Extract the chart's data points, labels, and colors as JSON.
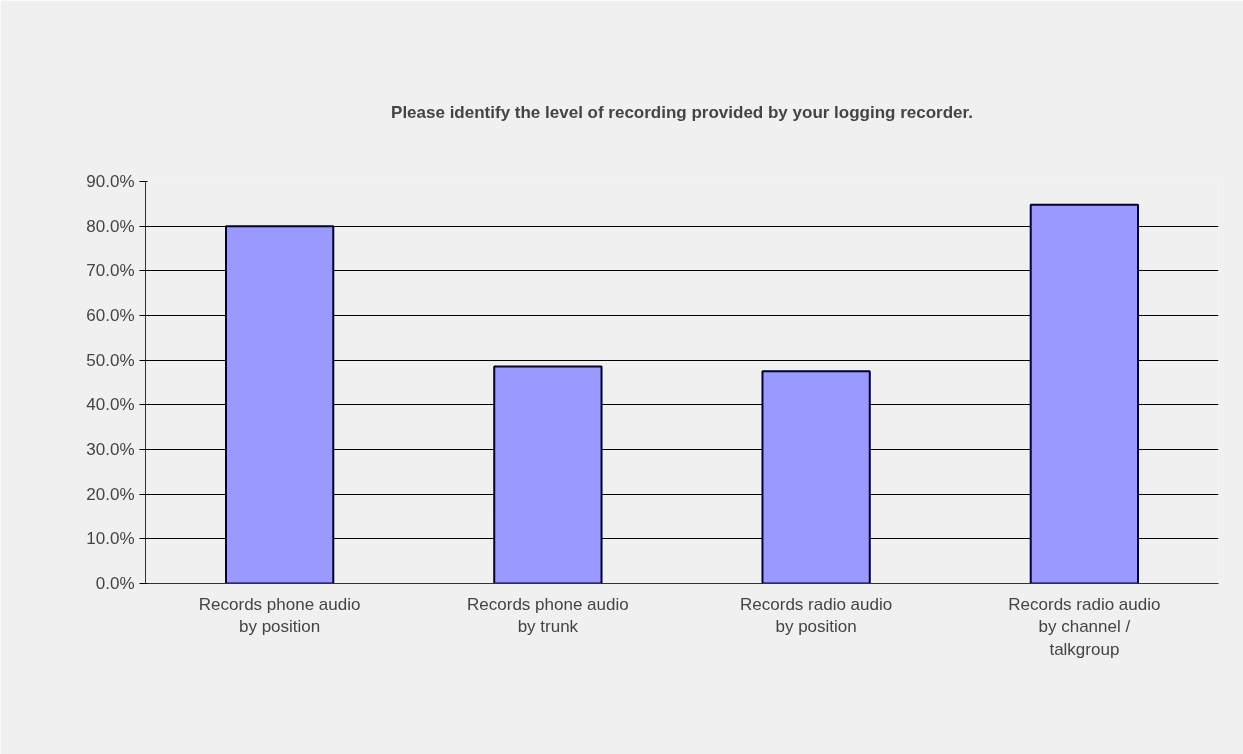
{
  "chart_data": {
    "type": "bar",
    "title": "Please identify the level of recording provided by your logging recorder.",
    "categories": [
      "Records phone audio by position",
      "Records phone audio by trunk",
      "Records radio audio by position",
      "Records radio audio by channel / talkgroup"
    ],
    "values": [
      80.0,
      48.6,
      47.5,
      84.8
    ],
    "color": "#9999ff",
    "ylim": [
      0,
      90
    ],
    "yticks": [
      {
        "value": 0,
        "label": "0.0%"
      },
      {
        "value": 10,
        "label": "10.0%"
      },
      {
        "value": 20,
        "label": "20.0%"
      },
      {
        "value": 30,
        "label": "30.0%"
      },
      {
        "value": 40,
        "label": "40.0%"
      },
      {
        "value": 50,
        "label": "50.0%"
      },
      {
        "value": 60,
        "label": "60.0%"
      },
      {
        "value": 70,
        "label": "70.0%"
      },
      {
        "value": 80,
        "label": "80.0%"
      },
      {
        "value": 90,
        "label": "90.0%"
      }
    ],
    "grid": "y"
  }
}
